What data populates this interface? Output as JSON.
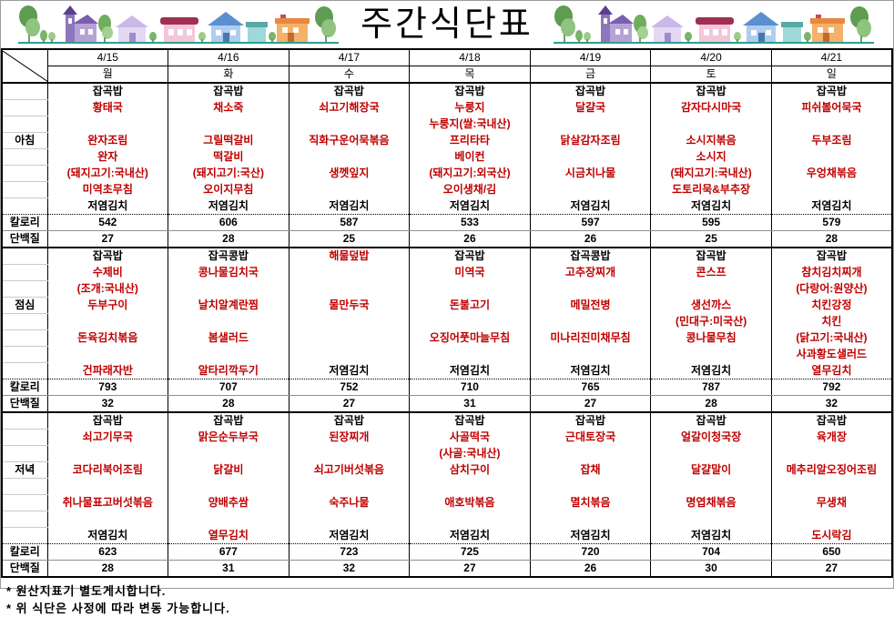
{
  "banner": {
    "title": "주간식단표",
    "left_clipart": "village-houses-and-trees",
    "right_clipart": "village-houses-and-trees"
  },
  "header": {
    "dates": [
      "4/15",
      "4/16",
      "4/17",
      "4/18",
      "4/19",
      "4/20",
      "4/21"
    ],
    "days": [
      "월",
      "화",
      "수",
      "목",
      "금",
      "토",
      "일"
    ]
  },
  "labels": {
    "calories": "칼로리",
    "protein": "단백질"
  },
  "sections": [
    {
      "id": "breakfast",
      "label": "아침",
      "rows": [
        [
          [
            "잡곡밥",
            "k"
          ],
          [
            "잡곡밥",
            "k"
          ],
          [
            "잡곡밥",
            "k"
          ],
          [
            "잡곡밥",
            "k"
          ],
          [
            "잡곡밥",
            "k"
          ],
          [
            "잡곡밥",
            "k"
          ],
          [
            "잡곡밥",
            "k"
          ]
        ],
        [
          [
            "황태국",
            "r"
          ],
          [
            "채소죽",
            "r"
          ],
          [
            "쇠고기해장국",
            "r"
          ],
          [
            "누룽지",
            "r"
          ],
          [
            "달걀국",
            "r"
          ],
          [
            "감자다시마국",
            "r"
          ],
          [
            "피쉬볼어묵국",
            "r"
          ]
        ],
        [
          [
            "",
            ""
          ],
          [
            "",
            ""
          ],
          [
            "",
            ""
          ],
          [
            "누룽지(쌀:국내산)",
            "r"
          ],
          [
            "",
            ""
          ],
          [
            "",
            ""
          ],
          [
            "",
            ""
          ]
        ],
        [
          [
            "완자조림",
            "r"
          ],
          [
            "그릴떡갈비",
            "r"
          ],
          [
            "직화구운어묵볶음",
            "r"
          ],
          [
            "프리타타",
            "r"
          ],
          [
            "닭살감자조림",
            "r"
          ],
          [
            "소시지볶음",
            "r"
          ],
          [
            "두부조림",
            "r"
          ]
        ],
        [
          [
            "완자",
            "r"
          ],
          [
            "떡갈비",
            "r"
          ],
          [
            "",
            ""
          ],
          [
            "베이컨",
            "r"
          ],
          [
            "",
            ""
          ],
          [
            "소시지",
            "r"
          ],
          [
            "",
            ""
          ]
        ],
        [
          [
            "(돼지고기:국내산)",
            "r"
          ],
          [
            "(돼지고기:국산)",
            "r"
          ],
          [
            "생껫잎지",
            "r"
          ],
          [
            "(돼지고기:외국산)",
            "r"
          ],
          [
            "시금치나물",
            "r"
          ],
          [
            "(돼지고기:국내산)",
            "r"
          ],
          [
            "우엉채볶음",
            "r"
          ]
        ],
        [
          [
            "미역초무침",
            "r"
          ],
          [
            "오이지무침",
            "r"
          ],
          [
            "",
            ""
          ],
          [
            "오이생채/김",
            "r"
          ],
          [
            "",
            ""
          ],
          [
            "도토리묵&부추장",
            "r"
          ],
          [
            "",
            ""
          ]
        ],
        [
          [
            "저염김치",
            "k"
          ],
          [
            "저염김치",
            "k"
          ],
          [
            "저염김치",
            "k"
          ],
          [
            "저염김치",
            "k"
          ],
          [
            "저염김치",
            "k"
          ],
          [
            "저염김치",
            "k"
          ],
          [
            "저염김치",
            "k"
          ]
        ]
      ],
      "calories": [
        "542",
        "606",
        "587",
        "533",
        "597",
        "595",
        "579"
      ],
      "protein": [
        "27",
        "28",
        "25",
        "26",
        "26",
        "25",
        "28"
      ]
    },
    {
      "id": "lunch",
      "label": "점심",
      "rows": [
        [
          [
            "잡곡밥",
            "k"
          ],
          [
            "잡곡콩밥",
            "k"
          ],
          [
            "해물덮밥",
            "r"
          ],
          [
            "잡곡밥",
            "k"
          ],
          [
            "잡곡콩밥",
            "k"
          ],
          [
            "잡곡밥",
            "k"
          ],
          [
            "잡곡밥",
            "k"
          ]
        ],
        [
          [
            "수제비",
            "r"
          ],
          [
            "콩나물김치국",
            "r"
          ],
          [
            "",
            ""
          ],
          [
            "미역국",
            "r"
          ],
          [
            "고추장찌개",
            "r"
          ],
          [
            "콘스프",
            "r"
          ],
          [
            "참치김치찌개",
            "r"
          ]
        ],
        [
          [
            "(조개:국내산)",
            "r"
          ],
          [
            "",
            ""
          ],
          [
            "",
            ""
          ],
          [
            "",
            ""
          ],
          [
            "",
            ""
          ],
          [
            "",
            ""
          ],
          [
            "(다랑어:원양산)",
            "r"
          ]
        ],
        [
          [
            "두부구이",
            "r"
          ],
          [
            "날치알계란찜",
            "r"
          ],
          [
            "물만두국",
            "r"
          ],
          [
            "돈불고기",
            "r"
          ],
          [
            "메밀전병",
            "r"
          ],
          [
            "생선까스",
            "r"
          ],
          [
            "치킨강정",
            "r"
          ]
        ],
        [
          [
            "",
            ""
          ],
          [
            "",
            ""
          ],
          [
            "",
            ""
          ],
          [
            "",
            ""
          ],
          [
            "",
            ""
          ],
          [
            "(민대구:미국산)",
            "r"
          ],
          [
            "치킨",
            "r"
          ]
        ],
        [
          [
            "돈육김치볶음",
            "r"
          ],
          [
            "봄샐러드",
            "r"
          ],
          [
            "",
            ""
          ],
          [
            "오징어풋마늘무침",
            "r"
          ],
          [
            "미나리진미채무침",
            "r"
          ],
          [
            "콩나물무침",
            "r"
          ],
          [
            "(닭고기:국내산)",
            "r"
          ]
        ],
        [
          [
            "",
            ""
          ],
          [
            "",
            ""
          ],
          [
            "",
            ""
          ],
          [
            "",
            ""
          ],
          [
            "",
            ""
          ],
          [
            "",
            ""
          ],
          [
            "사과황도샐러드",
            "r"
          ]
        ],
        [
          [
            "건파래자반",
            "r"
          ],
          [
            "알타리깍두기",
            "r"
          ],
          [
            "저염김치",
            "k"
          ],
          [
            "저염김치",
            "k"
          ],
          [
            "저염김치",
            "k"
          ],
          [
            "저염김치",
            "k"
          ],
          [
            "열무김치",
            "r"
          ]
        ]
      ],
      "calories": [
        "793",
        "707",
        "752",
        "710",
        "765",
        "787",
        "792"
      ],
      "protein": [
        "32",
        "28",
        "27",
        "31",
        "27",
        "28",
        "32"
      ]
    },
    {
      "id": "dinner",
      "label": "저녁",
      "rows": [
        [
          [
            "잡곡밥",
            "k"
          ],
          [
            "잡곡밥",
            "k"
          ],
          [
            "잡곡밥",
            "k"
          ],
          [
            "잡곡밥",
            "k"
          ],
          [
            "잡곡밥",
            "k"
          ],
          [
            "잡곡밥",
            "k"
          ],
          [
            "잡곡밥",
            "k"
          ]
        ],
        [
          [
            "쇠고기무국",
            "r"
          ],
          [
            "맑은순두부국",
            "r"
          ],
          [
            "된장찌개",
            "r"
          ],
          [
            "사골떡국",
            "r"
          ],
          [
            "근대토장국",
            "r"
          ],
          [
            "얼갈이청국장",
            "r"
          ],
          [
            "육개장",
            "r"
          ]
        ],
        [
          [
            "",
            ""
          ],
          [
            "",
            ""
          ],
          [
            "",
            ""
          ],
          [
            "(사골:국내산)",
            "r"
          ],
          [
            "",
            ""
          ],
          [
            "",
            ""
          ],
          [
            "",
            ""
          ]
        ],
        [
          [
            "코다리북어조림",
            "r"
          ],
          [
            "닭갈비",
            "r"
          ],
          [
            "쇠고기버섯볶음",
            "r"
          ],
          [
            "삼치구이",
            "r"
          ],
          [
            "잡채",
            "r"
          ],
          [
            "달걀말이",
            "r"
          ],
          [
            "메추리알오징어조림",
            "r"
          ]
        ],
        [
          [
            "",
            ""
          ],
          [
            "",
            ""
          ],
          [
            "",
            ""
          ],
          [
            "",
            ""
          ],
          [
            "",
            ""
          ],
          [
            "",
            ""
          ],
          [
            "",
            ""
          ]
        ],
        [
          [
            "취나물표고버섯볶음",
            "r"
          ],
          [
            "양배추쌈",
            "r"
          ],
          [
            "숙주나물",
            "r"
          ],
          [
            "애호박볶음",
            "r"
          ],
          [
            "멸치볶음",
            "r"
          ],
          [
            "명엽채볶음",
            "r"
          ],
          [
            "무생채",
            "r"
          ]
        ],
        [
          [
            "",
            ""
          ],
          [
            "",
            ""
          ],
          [
            "",
            ""
          ],
          [
            "",
            ""
          ],
          [
            "",
            ""
          ],
          [
            "",
            ""
          ],
          [
            "",
            ""
          ]
        ],
        [
          [
            "저염김치",
            "k"
          ],
          [
            "열무김치",
            "r"
          ],
          [
            "저염김치",
            "k"
          ],
          [
            "저염김치",
            "k"
          ],
          [
            "저염김치",
            "k"
          ],
          [
            "저염김치",
            "k"
          ],
          [
            "도시락김",
            "r"
          ]
        ]
      ],
      "calories": [
        "623",
        "677",
        "723",
        "725",
        "720",
        "704",
        "650"
      ],
      "protein": [
        "28",
        "31",
        "32",
        "27",
        "26",
        "30",
        "27"
      ]
    }
  ],
  "notes": [
    "* 원산지표기 별도게시합니다.",
    "* 위 식단은 사정에 따라 변동 가능합니다."
  ],
  "colors": {
    "menu_red": "#c00000",
    "grid_gray": "#cacaca",
    "baseline_teal": "#2e9e8e"
  }
}
